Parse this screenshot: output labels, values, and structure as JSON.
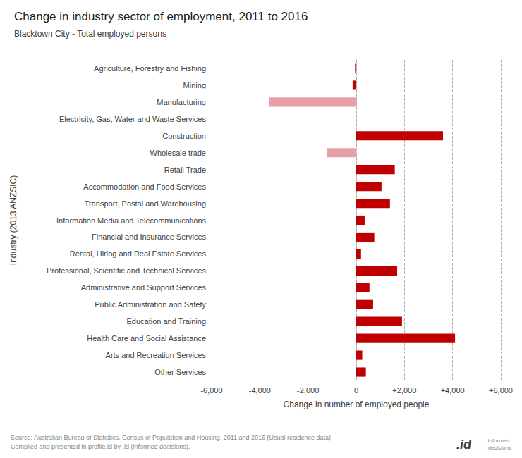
{
  "chart_data": {
    "type": "bar",
    "orientation": "horizontal",
    "title": "Change in industry sector of employment, 2011 to 2016",
    "subtitle": "Blacktown City - Total employed persons",
    "xlabel": "Change in number of employed people",
    "ylabel": "Industry (2013 ANZSIC)",
    "annotations": [
      "Source: Australian Bureau of Statistics, Census of Population and Housing, 2011 and 2016 (Usual residence data)\nCompiled and presented in profile.id by .id (informed decisions).",
      ".id",
      "informed\ndecisions"
    ],
    "categories": [
      "Agriculture, Forestry and Fishing",
      "Mining",
      "Manufacturing",
      "Electricity, Gas, Water and Waste Services",
      "Construction",
      "Wholesale trade",
      "Retail Trade",
      "Accommodation and Food Services",
      "Transport, Postal and Warehousing",
      "Information Media and Telecommunications",
      "Financial and Insurance Services",
      "Rental, Hiring and Real Estate Services",
      "Professional, Scientific and Technical Services",
      "Administrative and Support Services",
      "Public Administration and Safety",
      "Education and Training",
      "Health Care and Social Assistance",
      "Arts and Recreation Services",
      "Other Services"
    ],
    "values": [
      -50,
      -150,
      -3600,
      -20,
      3600,
      -1200,
      1600,
      1050,
      1400,
      350,
      750,
      200,
      1700,
      550,
      700,
      1900,
      4100,
      250,
      400
    ],
    "colors": [
      "#c00000",
      "#c00000",
      "#e8a0a8",
      "#c00000",
      "#c00000",
      "#e8a0a8",
      "#c00000",
      "#c00000",
      "#c00000",
      "#c00000",
      "#c00000",
      "#c00000",
      "#c00000",
      "#c00000",
      "#c00000",
      "#c00000",
      "#c00000",
      "#c00000",
      "#c00000"
    ],
    "xlim": [
      -6000,
      6000
    ],
    "xticks": [
      {
        "value": -6000,
        "label": "-6,000"
      },
      {
        "value": -4000,
        "label": "-4,000"
      },
      {
        "value": -2000,
        "label": "-2,000"
      },
      0,
      {
        "value": 2000,
        "label": "+2,000"
      },
      {
        "value": 4000,
        "label": "+4,000"
      },
      {
        "value": 6000,
        "label": "+6,000"
      }
    ],
    "grid": true
  }
}
